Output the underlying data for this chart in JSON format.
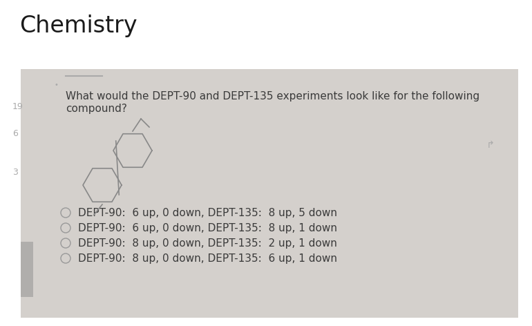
{
  "title": "Chemistry",
  "title_fontsize": 24,
  "title_color": "#1a1a1a",
  "bg_color": "#ffffff",
  "card_bg": "#d4d0cc",
  "question_text_line1": "What would the DEPT-90 and DEPT-135 experiments look like for the following",
  "question_text_line2": "compound?",
  "question_fontsize": 11.0,
  "question_color": "#3a3a3a",
  "options": [
    "DEPT-90:  6 up, 0 down, DEPT-135:  8 up, 5 down",
    "DEPT-90:  6 up, 0 down, DEPT-135:  8 up, 1 down",
    "DEPT-90:  8 up, 0 down, DEPT-135:  2 up, 1 down",
    "DEPT-90:  8 up, 0 down, DEPT-135:  6 up, 1 down"
  ],
  "option_fontsize": 11.0,
  "option_color": "#3a3a3a",
  "radio_color": "#999999",
  "mol_color": "#888888",
  "side_numbers": [
    [
      "3",
      0.415
    ],
    [
      "6",
      0.26
    ],
    [
      "19",
      0.15
    ]
  ],
  "side_number_color": "#aaaaaa",
  "tab_line_color": "#aaaaaa",
  "cursor_color": "#aaaaaa"
}
